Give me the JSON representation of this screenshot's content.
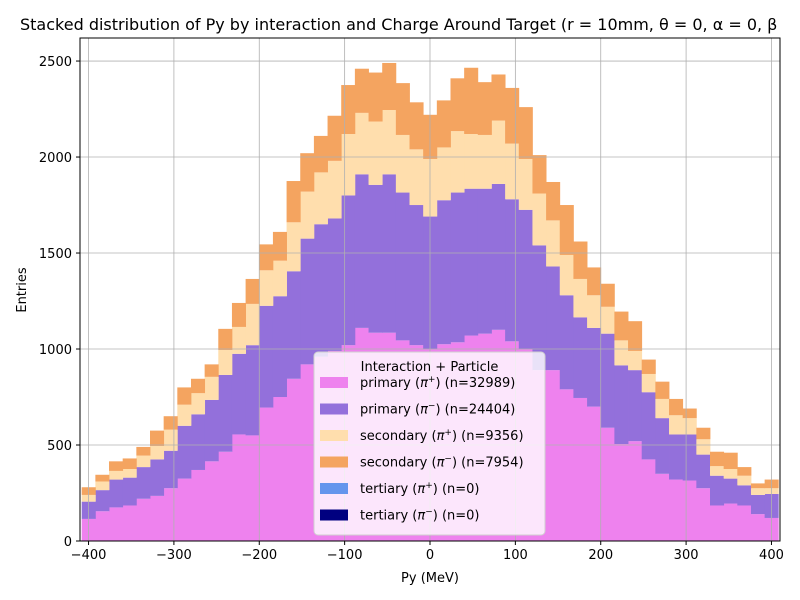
{
  "chart_data": {
    "type": "bar",
    "stacked": true,
    "title": "Stacked distribution of Py by interaction and Charge Around Target (r = 10mm, θ = 0, α = 0, β",
    "xlabel": "Py (MeV)",
    "ylabel": "Entries",
    "xlim": [
      -410,
      410
    ],
    "ylim": [
      0,
      2620
    ],
    "xticks": [
      -400,
      -300,
      -200,
      -100,
      0,
      100,
      200,
      300,
      400
    ],
    "yticks": [
      0,
      500,
      1000,
      1500,
      2000,
      2500
    ],
    "grid": true,
    "bin_width": 16,
    "bin_centers": [
      -400,
      -384,
      -368,
      -352,
      -336,
      -320,
      -304,
      -288,
      -272,
      -256,
      -240,
      -224,
      -208,
      -192,
      -176,
      -160,
      -144,
      -128,
      -112,
      -96,
      -80,
      -64,
      -48,
      -32,
      -16,
      0,
      16,
      32,
      48,
      64,
      80,
      96,
      112,
      128,
      144,
      160,
      176,
      192,
      208,
      224,
      240,
      256,
      272,
      288,
      304,
      320,
      336,
      352,
      368,
      384,
      400
    ],
    "series": [
      {
        "name": "primary (π⁺) (n=32989)",
        "color": "#ee82ee",
        "values": [
          115,
          155,
          175,
          185,
          220,
          235,
          275,
          325,
          370,
          415,
          465,
          555,
          550,
          695,
          750,
          845,
          920,
          960,
          990,
          1020,
          1110,
          1085,
          1085,
          1045,
          1020,
          1000,
          1025,
          1035,
          1070,
          1080,
          1100,
          1040,
          1000,
          890,
          890,
          790,
          745,
          700,
          590,
          505,
          520,
          425,
          350,
          320,
          315,
          275,
          185,
          195,
          185,
          140,
          120
        ]
      },
      {
        "name": "primary (π⁻) (n=24404)",
        "color": "#9370db",
        "values": [
          90,
          110,
          145,
          145,
          165,
          190,
          195,
          275,
          290,
          320,
          400,
          420,
          470,
          530,
          525,
          560,
          655,
          690,
          690,
          780,
          800,
          770,
          825,
          770,
          730,
          690,
          750,
          780,
          765,
          755,
          760,
          740,
          725,
          650,
          540,
          490,
          420,
          410,
          490,
          410,
          370,
          350,
          290,
          235,
          240,
          175,
          155,
          130,
          105,
          100,
          125
        ]
      },
      {
        "name": "secondary (π⁺) (n=9356)",
        "color": "#ffdead",
        "values": [
          35,
          45,
          45,
          45,
          60,
          70,
          110,
          110,
          110,
          120,
          130,
          140,
          215,
          185,
          185,
          255,
          245,
          270,
          300,
          320,
          320,
          330,
          335,
          300,
          290,
          300,
          275,
          320,
          285,
          280,
          330,
          290,
          265,
          270,
          240,
          210,
          200,
          170,
          140,
          130,
          100,
          95,
          100,
          100,
          85,
          80,
          50,
          50,
          50,
          35,
          30
        ]
      },
      {
        "name": "secondary (π⁻) (n=7954)",
        "color": "#f4a460",
        "values": [
          40,
          35,
          50,
          55,
          45,
          80,
          70,
          90,
          75,
          65,
          110,
          125,
          130,
          135,
          150,
          215,
          200,
          190,
          235,
          255,
          230,
          255,
          245,
          270,
          245,
          230,
          245,
          275,
          345,
          275,
          240,
          290,
          270,
          200,
          200,
          260,
          195,
          145,
          120,
          150,
          155,
          75,
          90,
          85,
          50,
          60,
          75,
          85,
          45,
          25,
          45
        ]
      },
      {
        "name": "tertiary (π⁺) (n=0)",
        "color": "#6495ed",
        "values": [
          0,
          0,
          0,
          0,
          0,
          0,
          0,
          0,
          0,
          0,
          0,
          0,
          0,
          0,
          0,
          0,
          0,
          0,
          0,
          0,
          0,
          0,
          0,
          0,
          0,
          0,
          0,
          0,
          0,
          0,
          0,
          0,
          0,
          0,
          0,
          0,
          0,
          0,
          0,
          0,
          0,
          0,
          0,
          0,
          0,
          0,
          0,
          0,
          0,
          0,
          0
        ]
      },
      {
        "name": "tertiary (π⁻) (n=0)",
        "color": "#000080",
        "values": [
          0,
          0,
          0,
          0,
          0,
          0,
          0,
          0,
          0,
          0,
          0,
          0,
          0,
          0,
          0,
          0,
          0,
          0,
          0,
          0,
          0,
          0,
          0,
          0,
          0,
          0,
          0,
          0,
          0,
          0,
          0,
          0,
          0,
          0,
          0,
          0,
          0,
          0,
          0,
          0,
          0,
          0,
          0,
          0,
          0,
          0,
          0,
          0,
          0,
          0,
          0
        ]
      }
    ],
    "legend": {
      "title": "Interaction + Particle",
      "placement": "lower-center",
      "entries": [
        {
          "prefix": "primary (",
          "sym": "π",
          "sup": "+",
          "suffix": ") (n=32989)",
          "color": "#ee82ee"
        },
        {
          "prefix": "primary (",
          "sym": "π",
          "sup": "−",
          "suffix": ") (n=24404)",
          "color": "#9370db"
        },
        {
          "prefix": "secondary (",
          "sym": "π",
          "sup": "+",
          "suffix": ") (n=9356)",
          "color": "#ffdead"
        },
        {
          "prefix": "secondary (",
          "sym": "π",
          "sup": "−",
          "suffix": ") (n=7954)",
          "color": "#f4a460"
        },
        {
          "prefix": "tertiary (",
          "sym": "π",
          "sup": "+",
          "suffix": ") (n=0)",
          "color": "#6495ed"
        },
        {
          "prefix": "tertiary (",
          "sym": "π",
          "sup": "−",
          "suffix": ") (n=0)",
          "color": "#000080"
        }
      ]
    }
  }
}
